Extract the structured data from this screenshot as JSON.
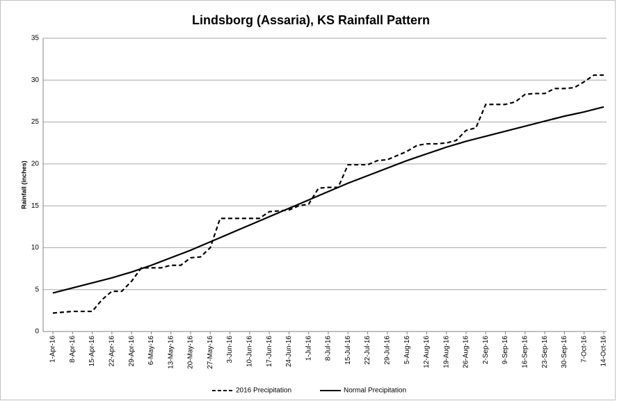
{
  "chart_data": {
    "type": "line",
    "title": "Lindsborg (Assaria), KS Rainfall Pattern",
    "y_label": "Rainfall (inches)",
    "categories": [
      "1-Apr-16",
      null,
      "8-Apr-16",
      null,
      "15-Apr-16",
      null,
      "22-Apr-16",
      null,
      "29-Apr-16",
      null,
      "6-May-16",
      null,
      "13-May-16",
      null,
      "20-May-16",
      null,
      "27-May-16",
      null,
      "3-Jun-16",
      null,
      "10-Jun-16",
      null,
      "17-Jun-16",
      null,
      "24-Jun-16",
      null,
      "1-Jul-16",
      null,
      "8-Jul-16",
      null,
      "15-Jul-16",
      null,
      "22-Jul-16",
      null,
      "29-Jul-16",
      null,
      "5-Aug-16",
      null,
      "12-Aug-16",
      null,
      "19-Aug-16",
      null,
      "26-Aug-16",
      null,
      "2-Sep-16",
      null,
      "9-Sep-16",
      null,
      "16-Sep-16",
      null,
      "23-Sep-16",
      null,
      "30-Sep-16",
      null,
      "7-Oct-16",
      null,
      "14-Oct-16"
    ],
    "series": [
      {
        "name": "2016 Precipitation",
        "color": "#000000",
        "dash": true,
        "values": [
          2.2,
          2.3,
          2.4,
          2.4,
          2.4,
          3.8,
          4.8,
          4.8,
          6.0,
          7.6,
          7.6,
          7.6,
          7.9,
          7.9,
          8.8,
          8.9,
          10.0,
          13.5,
          13.5,
          13.5,
          13.5,
          13.5,
          14.3,
          14.4,
          14.5,
          15.0,
          15.2,
          17.1,
          17.2,
          17.2,
          19.9,
          19.9,
          19.9,
          20.4,
          20.5,
          21.0,
          21.5,
          22.2,
          22.4,
          22.4,
          22.5,
          22.8,
          24.0,
          24.3,
          27.1,
          27.1,
          27.1,
          27.4,
          28.3,
          28.4,
          28.4,
          29.0,
          29.0,
          29.1,
          29.8,
          30.6,
          30.6
        ]
      },
      {
        "name": "Normal  Precipitation",
        "color": "#000000",
        "dash": false,
        "values": [
          4.6,
          4.9,
          5.2,
          5.5,
          5.8,
          6.1,
          6.4,
          6.75,
          7.1,
          7.5,
          7.9,
          8.35,
          8.8,
          9.25,
          9.7,
          10.2,
          10.7,
          11.2,
          11.7,
          12.2,
          12.7,
          13.2,
          13.7,
          14.2,
          14.7,
          15.2,
          15.7,
          16.2,
          16.7,
          17.2,
          17.7,
          18.15,
          18.6,
          19.05,
          19.5,
          19.95,
          20.4,
          20.8,
          21.2,
          21.6,
          22.0,
          22.35,
          22.7,
          23.0,
          23.3,
          23.6,
          23.9,
          24.2,
          24.5,
          24.8,
          25.1,
          25.4,
          25.7,
          25.95,
          26.2,
          26.5,
          26.8
        ]
      }
    ],
    "ylim": [
      0,
      35
    ],
    "yticks": [
      0,
      5,
      10,
      15,
      20,
      25,
      30,
      35
    ],
    "grid": true,
    "legend": "bottom"
  }
}
